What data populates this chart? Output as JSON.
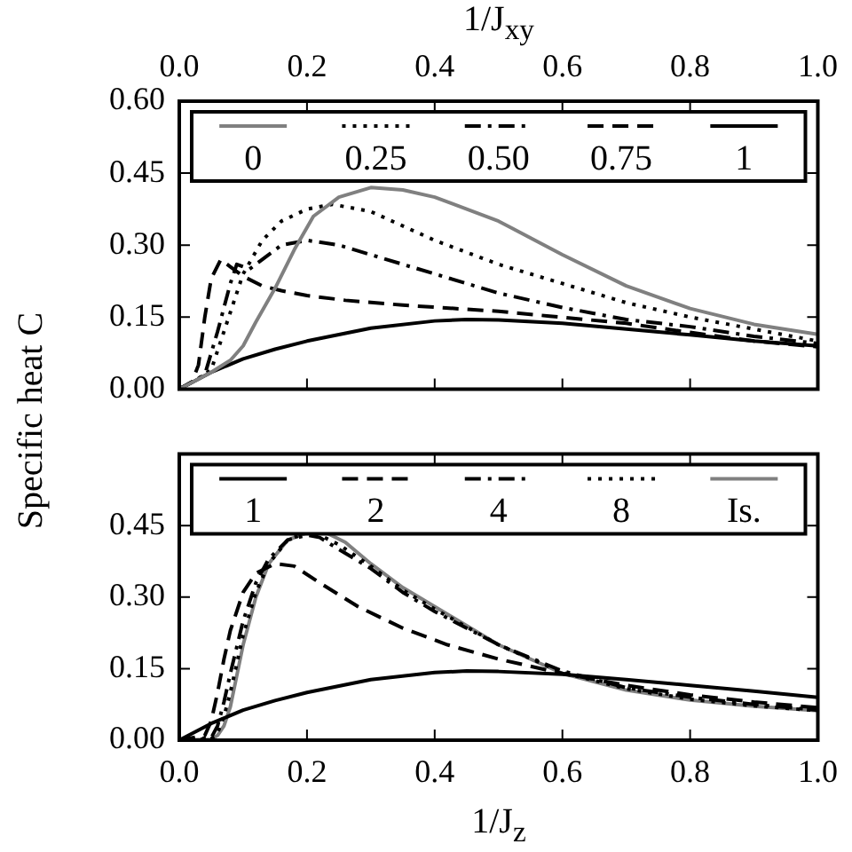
{
  "chart_data": [
    {
      "type": "line",
      "xlabel": "1/J$_{xy}$",
      "ylabel": "Specific heat C",
      "xlim": [
        0,
        1
      ],
      "xticks": [
        {
          "value": 0,
          "label": "0.0"
        },
        {
          "value": 0.2,
          "label": "0.2"
        },
        {
          "value": 0.4,
          "label": "0.4"
        },
        {
          "value": 0.6,
          "label": "0.6"
        },
        {
          "value": 0.8,
          "label": "0.8"
        },
        {
          "value": 1,
          "label": "1.0"
        }
      ],
      "ylim": [
        0,
        0.6
      ],
      "yticks": [
        {
          "value": 0,
          "label": "0.00"
        },
        {
          "value": 0.15,
          "label": "0.15"
        },
        {
          "value": 0.3,
          "label": "0.30"
        },
        {
          "value": 0.45,
          "label": "0.45"
        },
        {
          "value": 0.6,
          "label": "0.60"
        }
      ],
      "grid": false,
      "legend": "top",
      "series": [
        {
          "name": "0",
          "color": "#808080",
          "line_style": "solid",
          "x": [
            0,
            0.05,
            0.08,
            0.1,
            0.12,
            0.15,
            0.18,
            0.21,
            0.25,
            0.3,
            0.35,
            0.4,
            0.5,
            0.6,
            0.7,
            0.8,
            0.9,
            1.0
          ],
          "values": [
            0,
            0.035,
            0.06,
            0.09,
            0.14,
            0.21,
            0.29,
            0.36,
            0.4,
            0.42,
            0.415,
            0.4,
            0.35,
            0.28,
            0.215,
            0.168,
            0.135,
            0.114
          ]
        },
        {
          "name": "0.25",
          "color": "#000000",
          "line_style": "dotted",
          "x": [
            0,
            0.03,
            0.05,
            0.07,
            0.1,
            0.13,
            0.16,
            0.2,
            0.24,
            0.3,
            0.4,
            0.5,
            0.6,
            0.7,
            0.8,
            0.9,
            1.0
          ],
          "values": [
            0,
            0.022,
            0.04,
            0.12,
            0.24,
            0.31,
            0.35,
            0.375,
            0.385,
            0.37,
            0.31,
            0.26,
            0.22,
            0.18,
            0.15,
            0.125,
            0.1
          ]
        },
        {
          "name": "0.50",
          "color": "#000000",
          "line_style": "dashdot",
          "x": [
            0,
            0.03,
            0.04,
            0.06,
            0.08,
            0.09,
            0.11,
            0.13,
            0.16,
            0.2,
            0.25,
            0.3,
            0.4,
            0.5,
            0.6,
            0.7,
            0.8,
            0.9,
            1.0
          ],
          "values": [
            0,
            0.022,
            0.03,
            0.12,
            0.22,
            0.26,
            0.25,
            0.27,
            0.3,
            0.31,
            0.3,
            0.28,
            0.24,
            0.2,
            0.17,
            0.145,
            0.13,
            0.11,
            0.095
          ]
        },
        {
          "name": "0.75",
          "color": "#000000",
          "line_style": "dashed",
          "x": [
            0,
            0.02,
            0.03,
            0.04,
            0.05,
            0.065,
            0.08,
            0.1,
            0.13,
            0.16,
            0.2,
            0.26,
            0.35,
            0.43,
            0.5,
            0.58,
            0.7,
            0.8,
            0.9,
            1.0
          ],
          "values": [
            0,
            0.015,
            0.05,
            0.15,
            0.23,
            0.27,
            0.255,
            0.235,
            0.215,
            0.205,
            0.195,
            0.185,
            0.175,
            0.168,
            0.162,
            0.152,
            0.137,
            0.118,
            0.1,
            0.088
          ]
        },
        {
          "name": "1",
          "color": "#000000",
          "line_style": "solid",
          "x": [
            0,
            0.05,
            0.1,
            0.15,
            0.2,
            0.3,
            0.4,
            0.45,
            0.5,
            0.6,
            0.7,
            0.8,
            0.9,
            1.0
          ],
          "values": [
            0,
            0.035,
            0.063,
            0.083,
            0.1,
            0.127,
            0.142,
            0.145,
            0.144,
            0.137,
            0.125,
            0.113,
            0.1,
            0.09
          ]
        }
      ]
    },
    {
      "type": "line",
      "xlabel": "1/J$_{z}$",
      "xlim": [
        0,
        1
      ],
      "xticks": [
        {
          "value": 0,
          "label": "0.0"
        },
        {
          "value": 0.2,
          "label": "0.2"
        },
        {
          "value": 0.4,
          "label": "0.4"
        },
        {
          "value": 0.6,
          "label": "0.6"
        },
        {
          "value": 0.8,
          "label": "0.8"
        },
        {
          "value": 1,
          "label": "1.0"
        }
      ],
      "ylim": [
        0,
        0.6
      ],
      "yticks": [
        {
          "value": 0,
          "label": "0.00"
        },
        {
          "value": 0.15,
          "label": "0.15"
        },
        {
          "value": 0.3,
          "label": "0.30"
        },
        {
          "value": 0.45,
          "label": "0.45"
        },
        {
          "value": 0.6,
          "label": null
        }
      ],
      "grid": false,
      "legend": "top",
      "series": [
        {
          "name": "1",
          "color": "#000000",
          "line_style": "solid",
          "x": [
            0,
            0.05,
            0.1,
            0.15,
            0.2,
            0.3,
            0.4,
            0.45,
            0.5,
            0.6,
            0.7,
            0.8,
            0.9,
            1.0
          ],
          "values": [
            0,
            0.035,
            0.063,
            0.083,
            0.1,
            0.127,
            0.142,
            0.145,
            0.144,
            0.138,
            0.127,
            0.115,
            0.103,
            0.09
          ]
        },
        {
          "name": "2",
          "color": "#000000",
          "line_style": "dashed",
          "x": [
            0,
            0.04,
            0.05,
            0.06,
            0.07,
            0.08,
            0.1,
            0.12,
            0.15,
            0.18,
            0.22,
            0.28,
            0.35,
            0.42,
            0.5,
            0.6,
            0.7,
            0.8,
            0.9,
            1.0
          ],
          "values": [
            0,
            0.01,
            0.04,
            0.1,
            0.17,
            0.23,
            0.31,
            0.35,
            0.37,
            0.365,
            0.33,
            0.28,
            0.235,
            0.2,
            0.17,
            0.14,
            0.115,
            0.095,
            0.08,
            0.068
          ]
        },
        {
          "name": "4",
          "color": "#000000",
          "line_style": "dashdot",
          "x": [
            0,
            0.05,
            0.06,
            0.07,
            0.08,
            0.1,
            0.12,
            0.14,
            0.17,
            0.2,
            0.22,
            0.25,
            0.3,
            0.35,
            0.4,
            0.5,
            0.6,
            0.7,
            0.8,
            0.9,
            1.0
          ],
          "values": [
            0,
            0.005,
            0.03,
            0.08,
            0.14,
            0.25,
            0.33,
            0.38,
            0.42,
            0.43,
            0.425,
            0.4,
            0.36,
            0.31,
            0.27,
            0.2,
            0.145,
            0.11,
            0.09,
            0.075,
            0.063
          ]
        },
        {
          "name": "8",
          "color": "#000000",
          "line_style": "dotted",
          "x": [
            0,
            0.05,
            0.06,
            0.07,
            0.08,
            0.1,
            0.12,
            0.14,
            0.17,
            0.2,
            0.22,
            0.25,
            0.3,
            0.35,
            0.4,
            0.5,
            0.6,
            0.7,
            0.8,
            0.9,
            1.0
          ],
          "values": [
            0,
            0.003,
            0.015,
            0.05,
            0.1,
            0.22,
            0.31,
            0.37,
            0.42,
            0.435,
            0.43,
            0.41,
            0.365,
            0.315,
            0.275,
            0.2,
            0.142,
            0.108,
            0.086,
            0.072,
            0.062
          ]
        },
        {
          "name": "Is.",
          "color": "#808080",
          "line_style": "solid",
          "x": [
            0,
            0.05,
            0.06,
            0.07,
            0.08,
            0.1,
            0.12,
            0.14,
            0.17,
            0.21,
            0.23,
            0.26,
            0.3,
            0.35,
            0.4,
            0.5,
            0.6,
            0.7,
            0.8,
            0.9,
            1.0
          ],
          "values": [
            0,
            0.002,
            0.01,
            0.03,
            0.07,
            0.2,
            0.3,
            0.37,
            0.42,
            0.44,
            0.435,
            0.415,
            0.37,
            0.32,
            0.28,
            0.2,
            0.14,
            0.105,
            0.084,
            0.071,
            0.062
          ]
        }
      ]
    }
  ]
}
